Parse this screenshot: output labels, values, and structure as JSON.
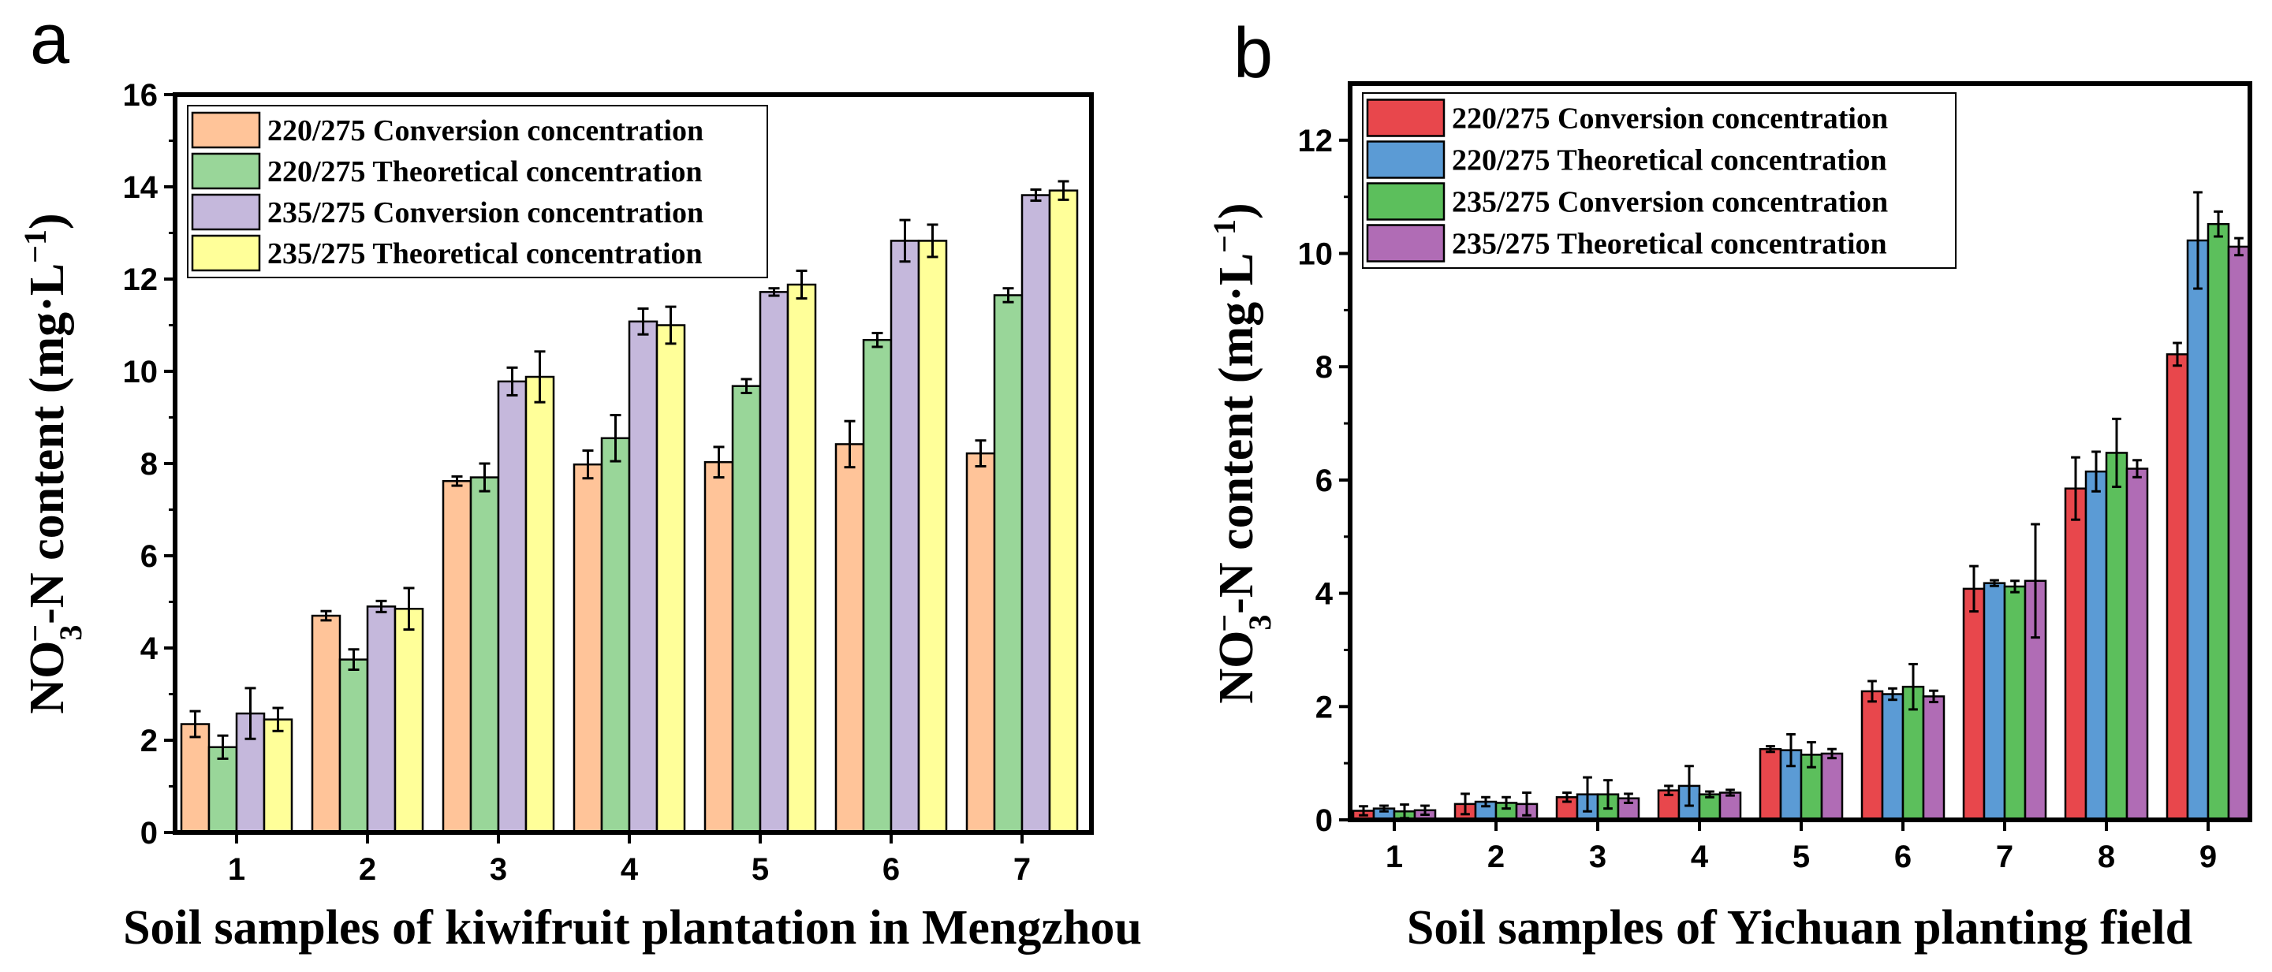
{
  "chart_data": [
    {
      "panel": "a",
      "type": "bar",
      "title": "",
      "xlabel": "Soil samples of kiwifruit plantation in Mengzhou",
      "ylabel_parts": {
        "a": "NO",
        "sub": "3",
        "sup": "−",
        "b": "-N content (mg·L",
        "sup2": "−1",
        "c": ")"
      },
      "ylim": [
        0,
        16
      ],
      "yticks": [
        "0",
        "2",
        "4",
        "6",
        "8",
        "10",
        "12",
        "14",
        "16"
      ],
      "categories": [
        "1",
        "2",
        "3",
        "4",
        "5",
        "6",
        "7"
      ],
      "legend_position": "top-left",
      "series": [
        {
          "name": "220/275 Conversion concentration",
          "color": "#FFC499",
          "values": [
            2.35,
            4.7,
            7.62,
            7.98,
            8.03,
            8.42,
            8.22
          ],
          "errors": [
            0.28,
            0.1,
            0.1,
            0.3,
            0.33,
            0.5,
            0.28
          ]
        },
        {
          "name": "220/275 Theoretical concentration",
          "color": "#99D699",
          "values": [
            1.85,
            3.75,
            7.7,
            8.55,
            9.68,
            10.68,
            11.65
          ],
          "errors": [
            0.25,
            0.22,
            0.3,
            0.5,
            0.15,
            0.15,
            0.15
          ]
        },
        {
          "name": "235/275 Conversion concentration",
          "color": "#C5B8DC",
          "values": [
            2.58,
            4.9,
            9.78,
            11.08,
            11.72,
            12.83,
            13.82
          ],
          "errors": [
            0.55,
            0.12,
            0.3,
            0.28,
            0.08,
            0.45,
            0.12
          ]
        },
        {
          "name": "235/275 Theoretical concentration",
          "color": "#FFFF99",
          "values": [
            2.45,
            4.85,
            9.88,
            11.0,
            11.88,
            12.83,
            13.92
          ],
          "errors": [
            0.25,
            0.45,
            0.55,
            0.4,
            0.3,
            0.35,
            0.2
          ]
        }
      ]
    },
    {
      "panel": "b",
      "type": "bar",
      "title": "",
      "xlabel": "Soil samples of Yichuan planting field",
      "ylabel_parts": {
        "a": "NO",
        "sub": "3",
        "sup": "−",
        "b": "-N content (mg·L",
        "sup2": "−1",
        "c": ")"
      },
      "ylim": [
        0,
        13
      ],
      "yticks": [
        "0",
        "2",
        "4",
        "6",
        "8",
        "10",
        "12"
      ],
      "categories": [
        "1",
        "2",
        "3",
        "4",
        "5",
        "6",
        "7",
        "8",
        "9"
      ],
      "legend_position": "top-left",
      "series": [
        {
          "name": "220/275 Conversion concentration",
          "color": "#E8474C",
          "values": [
            0.16,
            0.28,
            0.4,
            0.52,
            1.25,
            2.27,
            4.08,
            5.85,
            8.22
          ],
          "errors": [
            0.08,
            0.18,
            0.08,
            0.08,
            0.05,
            0.18,
            0.4,
            0.55,
            0.2
          ]
        },
        {
          "name": "220/275 Theoretical concentration",
          "color": "#5B9BD5",
          "values": [
            0.2,
            0.32,
            0.45,
            0.6,
            1.23,
            2.22,
            4.18,
            6.15,
            10.23
          ],
          "errors": [
            0.05,
            0.08,
            0.3,
            0.35,
            0.28,
            0.1,
            0.05,
            0.35,
            0.85
          ]
        },
        {
          "name": "235/275 Conversion concentration",
          "color": "#5CBF5C",
          "values": [
            0.15,
            0.3,
            0.45,
            0.45,
            1.15,
            2.35,
            4.12,
            6.48,
            10.52
          ],
          "errors": [
            0.12,
            0.1,
            0.25,
            0.05,
            0.22,
            0.4,
            0.1,
            0.6,
            0.22
          ]
        },
        {
          "name": "235/275 Theoretical concentration",
          "color": "#B06CB5",
          "values": [
            0.17,
            0.28,
            0.38,
            0.48,
            1.17,
            2.18,
            4.22,
            6.2,
            10.12
          ],
          "errors": [
            0.08,
            0.2,
            0.08,
            0.05,
            0.08,
            0.1,
            1.0,
            0.15,
            0.15
          ]
        }
      ]
    }
  ],
  "panel_labels": {
    "a": "a",
    "b": "b"
  }
}
